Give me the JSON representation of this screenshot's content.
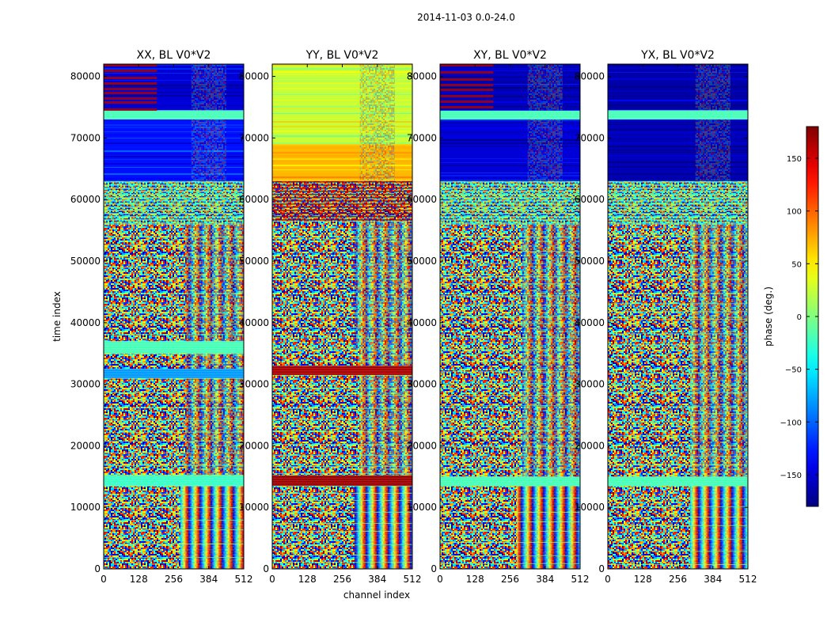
{
  "suptitle": "2014-11-03 0.0-24.0",
  "colorbar_label": "phase (deg.)",
  "chart_data": {
    "type": "heatmap",
    "colormap": "jet",
    "xlabel": "channel index",
    "ylabel": "time index",
    "xlim": [
      0,
      512
    ],
    "ylim": [
      0,
      82000
    ],
    "x_ticks": [
      0,
      128,
      256,
      384,
      512
    ],
    "y_ticks": [
      0,
      10000,
      20000,
      30000,
      40000,
      50000,
      60000,
      70000,
      80000
    ],
    "colorbar": {
      "range": [
        -180,
        180
      ],
      "ticks": [
        -150,
        -100,
        -50,
        0,
        50,
        100,
        150
      ],
      "tick_labels": [
        "−150",
        "−100",
        "−50",
        "0",
        "50",
        "100",
        "150"
      ]
    },
    "panels": [
      {
        "title": "XX, BL V0*V2",
        "bands": [
          {
            "from": 0,
            "to": 13500,
            "pattern": "noise_fringes",
            "fringe_from": 280
          },
          {
            "from": 13500,
            "to": 15200,
            "pattern": "flat",
            "value": -25
          },
          {
            "from": 15200,
            "to": 31000,
            "pattern": "noise",
            "fringe_from": 300
          },
          {
            "from": 31000,
            "to": 32500,
            "pattern": "flat",
            "value": -80
          },
          {
            "from": 32500,
            "to": 35000,
            "pattern": "noise",
            "fringe_from": 300
          },
          {
            "from": 35000,
            "to": 37000,
            "pattern": "flat",
            "value": -20
          },
          {
            "from": 37000,
            "to": 56000,
            "pattern": "noise",
            "fringe_from": 300
          },
          {
            "from": 56000,
            "to": 63000,
            "pattern": "stripes",
            "value": -20
          },
          {
            "from": 63000,
            "to": 73000,
            "pattern": "smooth",
            "value": -130
          },
          {
            "from": 73000,
            "to": 74500,
            "pattern": "flat",
            "value": -20
          },
          {
            "from": 74500,
            "to": 82000,
            "pattern": "smooth_red",
            "value": -150
          }
        ]
      },
      {
        "title": "YY, BL V0*V2",
        "bands": [
          {
            "from": 0,
            "to": 13500,
            "pattern": "noise_fringes",
            "fringe_from": 300
          },
          {
            "from": 13500,
            "to": 15200,
            "pattern": "flat",
            "value": 170
          },
          {
            "from": 15200,
            "to": 31500,
            "pattern": "noise",
            "fringe_from": 320
          },
          {
            "from": 31500,
            "to": 33000,
            "pattern": "flat",
            "value": 165
          },
          {
            "from": 33000,
            "to": 35800,
            "pattern": "noise",
            "fringe_from": 320
          },
          {
            "from": 35800,
            "to": 56500,
            "pattern": "noise",
            "fringe_from": 300
          },
          {
            "from": 56500,
            "to": 63000,
            "pattern": "stripes",
            "value": 160
          },
          {
            "from": 63000,
            "to": 69000,
            "pattern": "smooth",
            "value": 70
          },
          {
            "from": 69000,
            "to": 82000,
            "pattern": "smooth",
            "value": 25
          }
        ]
      },
      {
        "title": "XY, BL V0*V2",
        "bands": [
          {
            "from": 0,
            "to": 13500,
            "pattern": "noise_fringes",
            "fringe_from": 280
          },
          {
            "from": 13500,
            "to": 15000,
            "pattern": "flat",
            "value": -20
          },
          {
            "from": 15000,
            "to": 56000,
            "pattern": "noise",
            "fringe_from": 300
          },
          {
            "from": 56000,
            "to": 63000,
            "pattern": "stripes",
            "value": -20
          },
          {
            "from": 63000,
            "to": 73000,
            "pattern": "smooth",
            "value": -150
          },
          {
            "from": 73000,
            "to": 74500,
            "pattern": "flat",
            "value": -20
          },
          {
            "from": 74500,
            "to": 82000,
            "pattern": "smooth_red",
            "value": -160
          }
        ]
      },
      {
        "title": "YX, BL V0*V2",
        "bands": [
          {
            "from": 0,
            "to": 13500,
            "pattern": "noise_fringes",
            "fringe_from": 300
          },
          {
            "from": 13500,
            "to": 15000,
            "pattern": "flat",
            "value": -20
          },
          {
            "from": 15000,
            "to": 56000,
            "pattern": "noise",
            "fringe_from": 300
          },
          {
            "from": 56000,
            "to": 63000,
            "pattern": "stripes",
            "value": -20
          },
          {
            "from": 63000,
            "to": 73000,
            "pattern": "smooth",
            "value": -160
          },
          {
            "from": 73000,
            "to": 74500,
            "pattern": "flat",
            "value": -20
          },
          {
            "from": 74500,
            "to": 82000,
            "pattern": "smooth",
            "value": -165
          }
        ]
      }
    ]
  }
}
